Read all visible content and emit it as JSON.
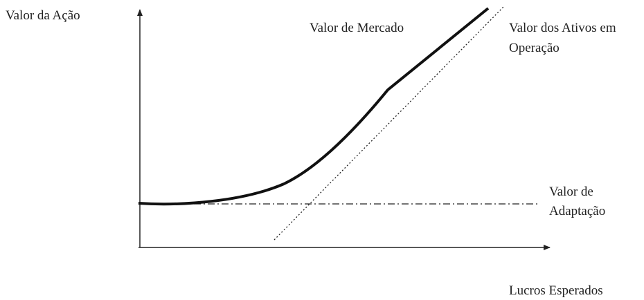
{
  "diagram": {
    "y_axis_label": "Valor da Ação",
    "x_axis_label": "Lucros Esperados",
    "curves": {
      "market_value": "Valor de Mercado",
      "operating_assets": [
        "Valor dos Ativos em",
        "Operação"
      ],
      "adaptation": [
        "Valor de",
        "Adaptação"
      ]
    }
  }
}
